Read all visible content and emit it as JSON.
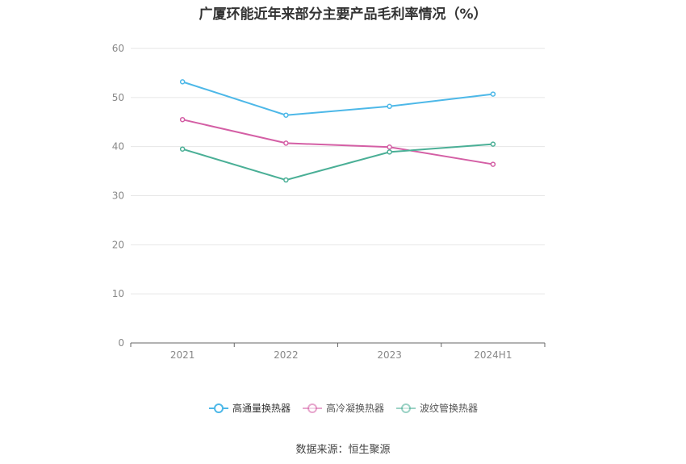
{
  "title": "广厦环能近年来部分主要产品毛利率情况（%）",
  "source": "数据来源：恒生聚源",
  "chart_data": {
    "type": "line",
    "categories": [
      "2021",
      "2022",
      "2023",
      "2024H1"
    ],
    "ylim": [
      0,
      60
    ],
    "yticks": [
      "0",
      "10",
      "20",
      "30",
      "40",
      "50",
      "60"
    ],
    "grid": true,
    "legend_position": "bottom",
    "series": [
      {
        "name": "高通量换热器",
        "color": "#4db8e8",
        "values": [
          53.2,
          46.4,
          48.2,
          50.7
        ]
      },
      {
        "name": "高冷凝换热器",
        "color": "#d45fa5",
        "values": [
          45.5,
          40.7,
          39.9,
          36.4
        ]
      },
      {
        "name": "波纹管换热器",
        "color": "#4aaf96",
        "values": [
          39.5,
          33.2,
          38.9,
          40.5
        ]
      }
    ]
  }
}
